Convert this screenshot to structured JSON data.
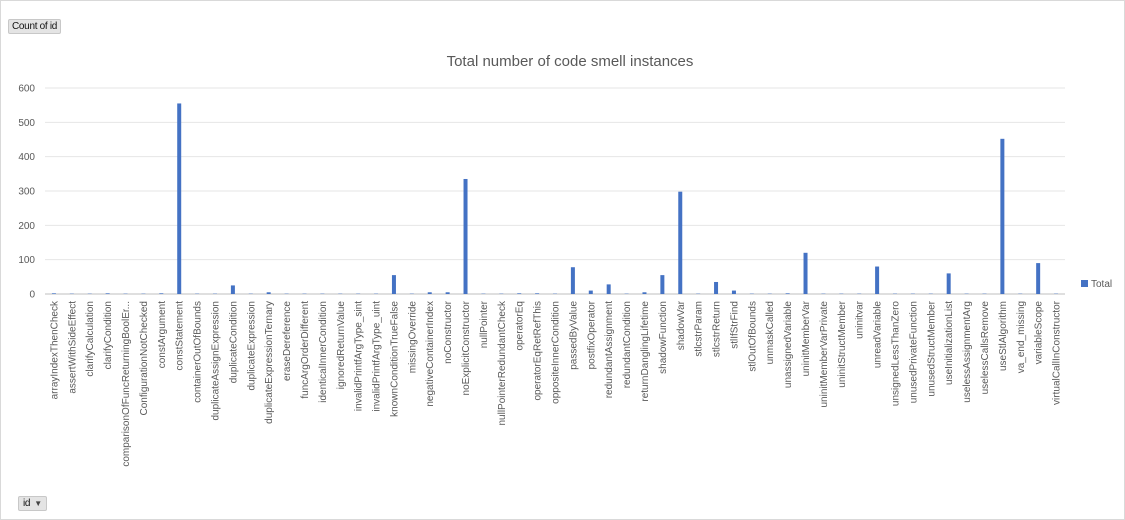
{
  "pivot": {
    "value_field": "Count of id",
    "axis_field": "id",
    "axis_field_icon": "dropdown-arrow-icon"
  },
  "colors": {
    "bar": "#4472C4",
    "grid": "#e6e6e6",
    "axis": "#bfbfbf",
    "text": "#595959"
  },
  "chart_data": {
    "type": "bar",
    "title": "Total number of code smell instances",
    "xlabel": "",
    "ylabel": "",
    "ylim": [
      0,
      600
    ],
    "yticks": [
      0,
      100,
      200,
      300,
      400,
      500,
      600
    ],
    "grid": true,
    "legend_position": "right",
    "categories": [
      "arrayIndexThenCheck",
      "assertWithSideEffect",
      "clarifyCalculation",
      "clarifyCondition",
      "comparisonOfFuncReturningBoolEr...",
      "ConfigurationNotChecked",
      "constArgument",
      "constStatement",
      "containerOutOfBounds",
      "duplicateAssignExpression",
      "duplicateCondition",
      "duplicateExpression",
      "duplicateExpressionTernary",
      "eraseDereference",
      "funcArgOrderDifferent",
      "identicalInnerCondition",
      "ignoredReturnValue",
      "invalidPrintfArgType_sint",
      "invalidPrintfArgType_uint",
      "knownConditionTrueFalse",
      "missingOverride",
      "negativeContainerIndex",
      "noConstructor",
      "noExplicitConstructor",
      "nullPointer",
      "nullPointerRedundantCheck",
      "operatorEq",
      "operatorEqRetRefThis",
      "oppositeInnerCondition",
      "passedByValue",
      "postfixOperator",
      "redundantAssignment",
      "redundantCondition",
      "returnDanglingLifetime",
      "shadowFunction",
      "shadowVar",
      "stlcstrParam",
      "stlcstrReturn",
      "stlIfStrFind",
      "stlOutOfBounds",
      "unmaskCalled",
      "unassignedVariable",
      "uninitMemberVar",
      "uninitMemberVarPrivate",
      "uninitStructMember",
      "uninitvar",
      "unreadVariable",
      "unsignedLessThanZero",
      "unusedPrivateFunction",
      "unusedStructMember",
      "useInitializationList",
      "uselessAssignmentArg",
      "uselessCallsRemove",
      "useStlAlgorithm",
      "va_end_missing",
      "variableScope",
      "virtualCallInConstructor"
    ],
    "series": [
      {
        "name": "Total",
        "values": [
          2,
          1,
          1,
          2,
          1,
          1,
          2,
          555,
          1,
          1,
          25,
          1,
          5,
          1,
          1,
          1,
          1,
          1,
          1,
          55,
          1,
          5,
          5,
          335,
          1,
          1,
          2,
          2,
          1,
          78,
          10,
          28,
          1,
          5,
          55,
          298,
          1,
          35,
          10,
          1,
          1,
          2,
          120,
          1,
          1,
          1,
          80,
          1,
          1,
          1,
          60,
          1,
          1,
          452,
          1,
          90,
          1
        ]
      }
    ]
  }
}
